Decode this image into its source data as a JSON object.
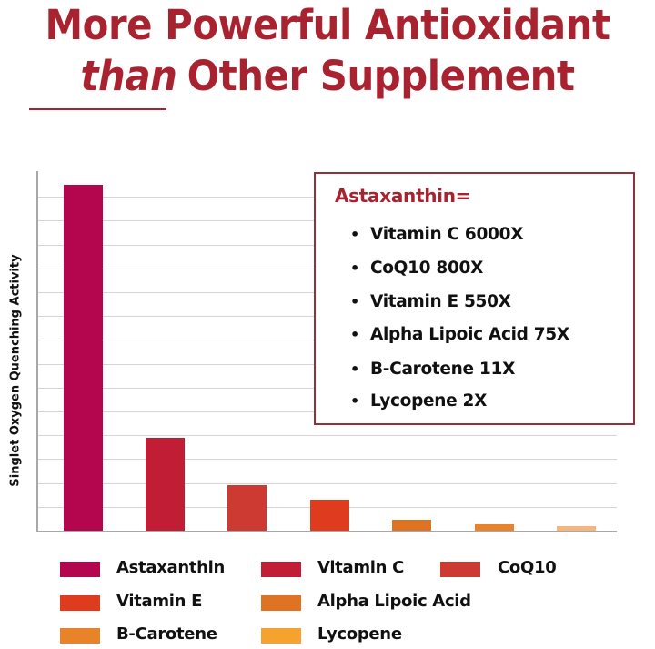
{
  "header": {
    "title_line1": "More Powerful Antioxidant",
    "title_line2_emphasis": "than",
    "title_line2_rest": "Other Supplement",
    "title_color": "#A8222F"
  },
  "callout": {
    "heading": "Astaxanthin=",
    "items": [
      {
        "bullet": "•",
        "text": "Vitamin C  6000X"
      },
      {
        "bullet": "•",
        "text": "CoQ10  800X"
      },
      {
        "bullet": "•",
        "text": "Vitamin E  550X"
      },
      {
        "bullet": "•",
        "text": "Alpha Lipoic Acid  75X"
      },
      {
        "bullet": "•",
        "text": "B-Carotene  11X"
      },
      {
        "bullet": "•",
        "text": "Lycopene  2X"
      }
    ],
    "border_color": "#94303A"
  },
  "legend": {
    "items": [
      {
        "label": "Astaxanthin",
        "color": "#B3064E"
      },
      {
        "label": "Vitamin C",
        "color": "#C11E35"
      },
      {
        "label": "CoQ10",
        "color": "#CC3A32"
      },
      {
        "label": "Vitamin E",
        "color": "#DF3B1E"
      },
      {
        "label": "Alpha Lipoic Acid",
        "color": "#DE7323"
      },
      {
        "label": "B-Carotene",
        "color": "#E8832A"
      },
      {
        "label": "Lycopene",
        "color": "#F5A22E"
      }
    ]
  },
  "chart_data": {
    "type": "bar",
    "title": "More Powerful Antioxidant than Other Supplement",
    "xlabel": "",
    "ylabel": "Singlet Oxygen Quenching Activity",
    "categories": [
      "Astaxanthin",
      "Vitamin C",
      "CoQ10",
      "Vitamin E",
      "Alpha Lipoic Acid",
      "B-Carotene",
      "Lycopene"
    ],
    "values": [
      14.5,
      3.9,
      1.9,
      1.3,
      0.45,
      0.27,
      0.2
    ],
    "value_units": "gridline units (no numeric tick labels shown)",
    "colors": [
      "#B3064E",
      "#C11E35",
      "#CC3A32",
      "#DF3B1E",
      "#DE7323",
      "#E8832A",
      "#F4B67E"
    ],
    "ylim": [
      0,
      15
    ],
    "grid": true,
    "gridline_count": 14,
    "legend_position": "bottom",
    "annotations": [
      "Astaxanthin=",
      "Vitamin C 6000X",
      "CoQ10 800X",
      "Vitamin E 550X",
      "Alpha Lipoic Acid 75X",
      "B-Carotene 11X",
      "Lycopene 2X"
    ]
  }
}
